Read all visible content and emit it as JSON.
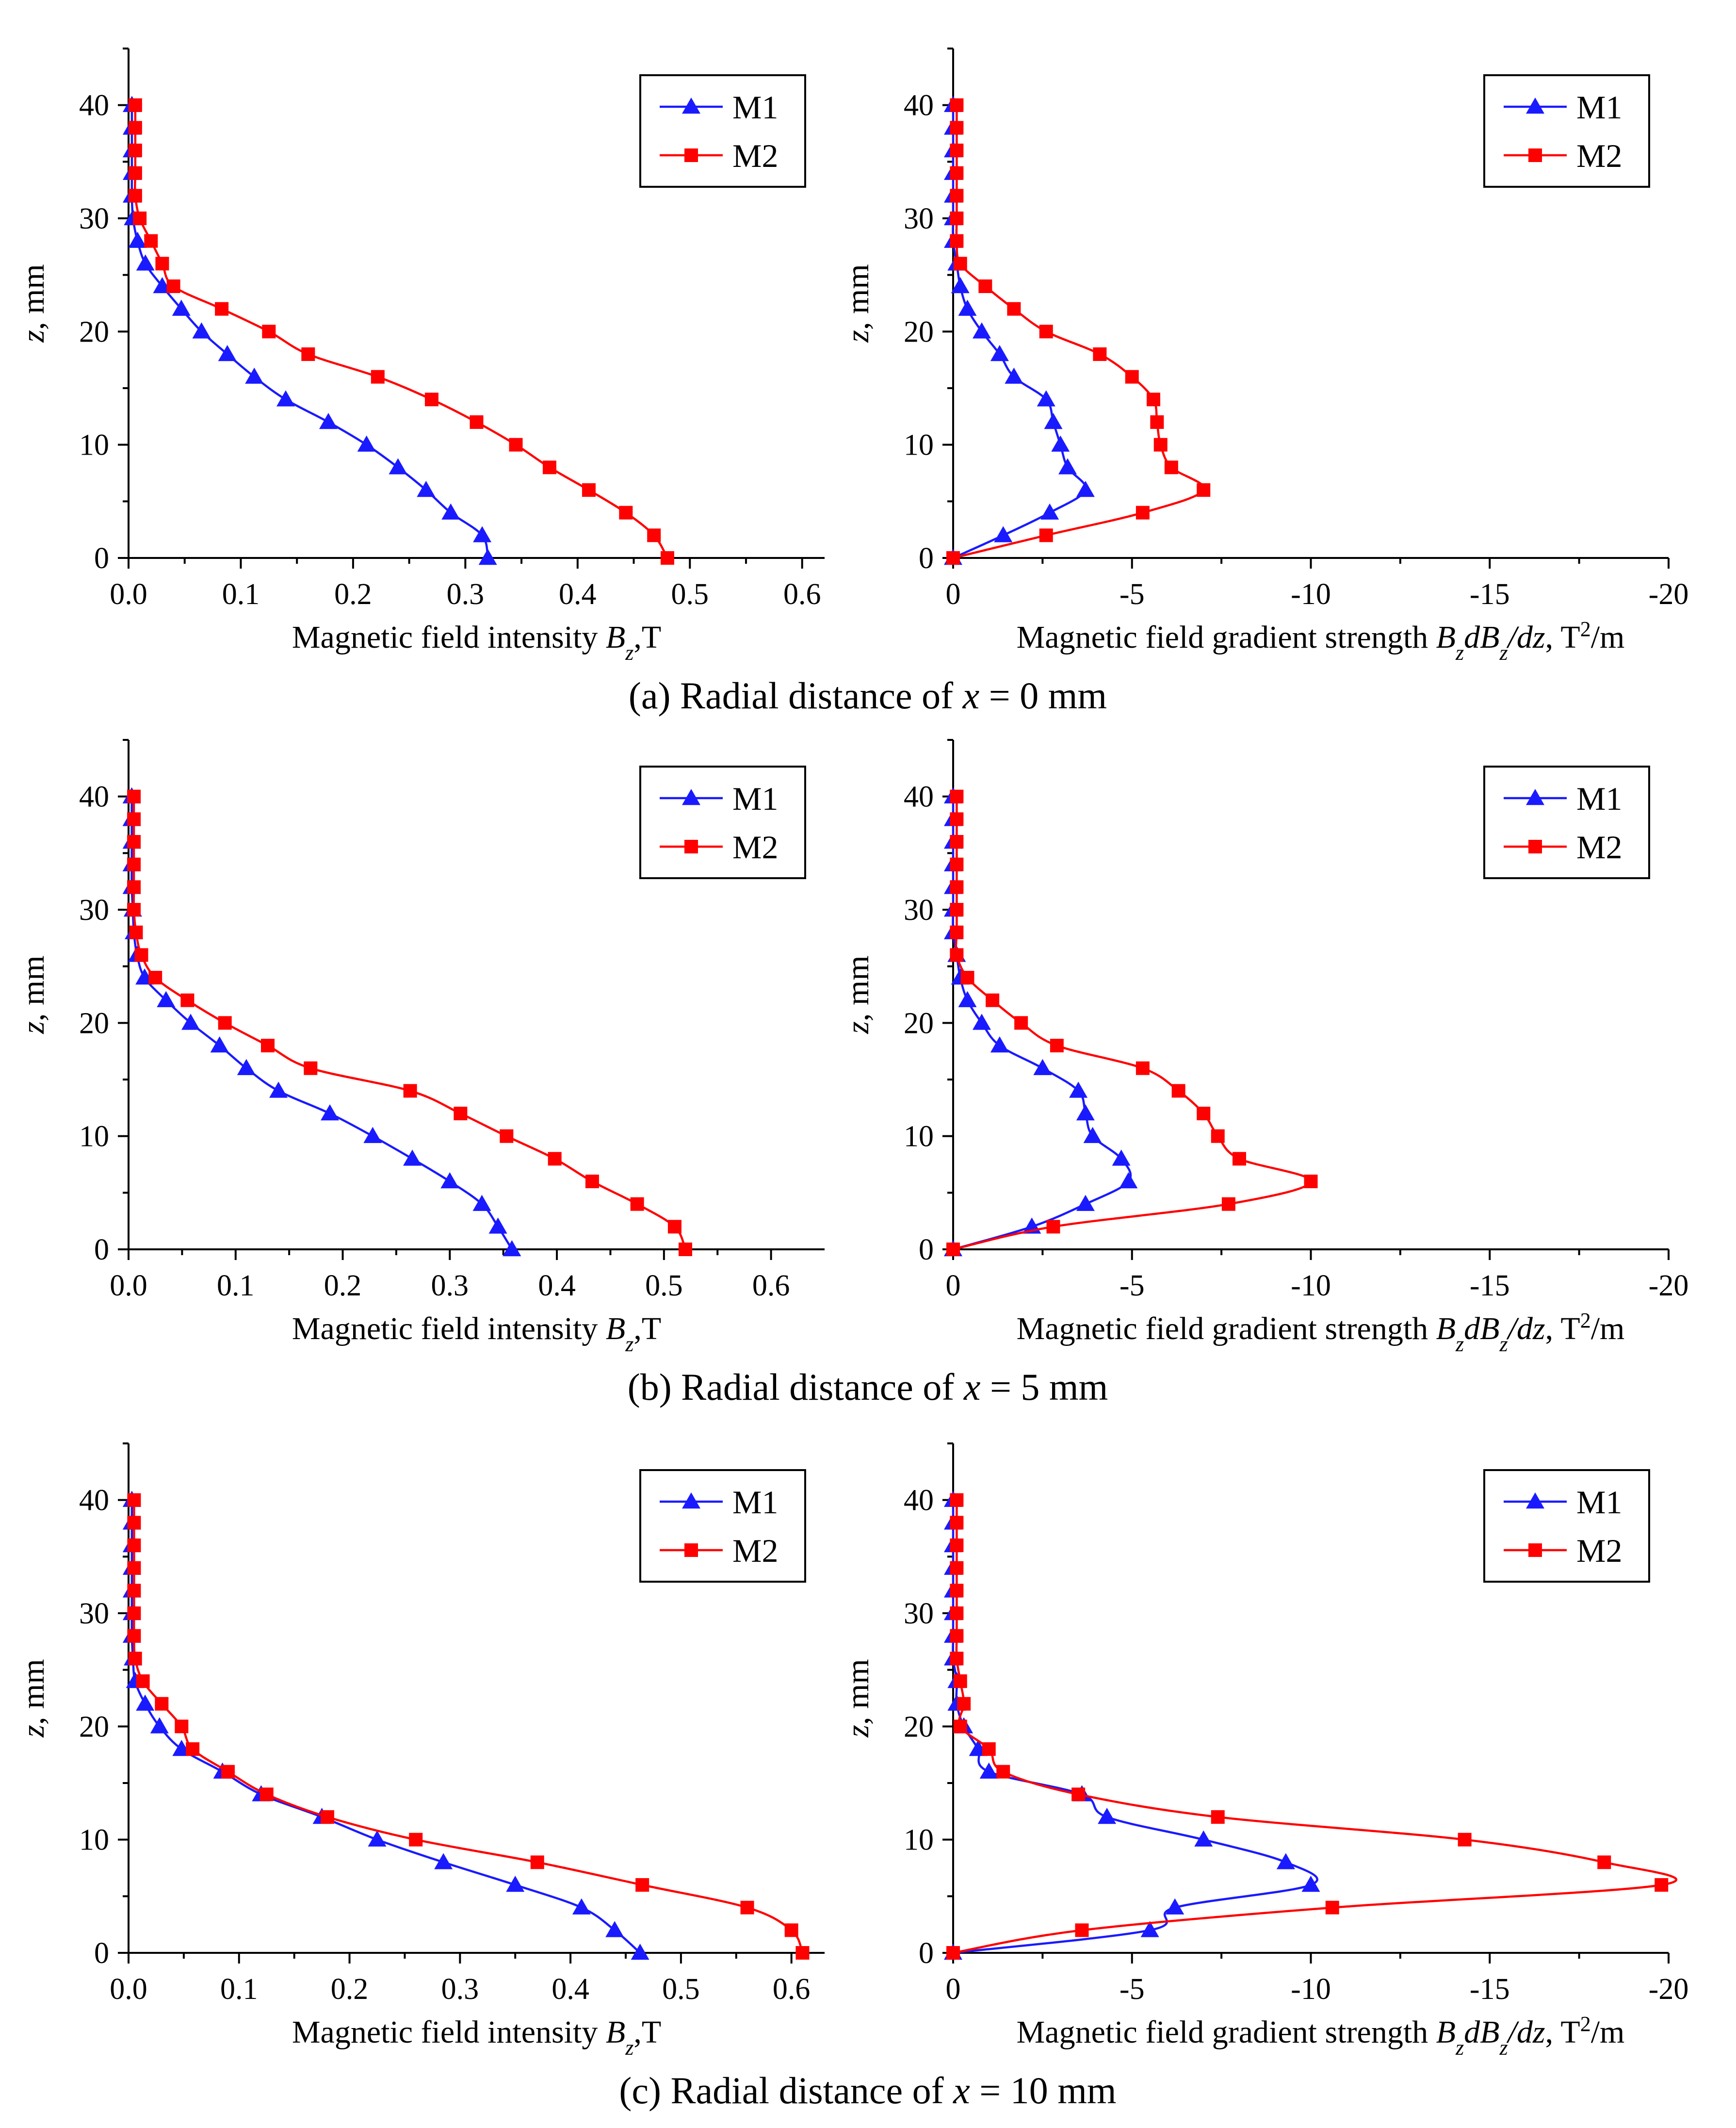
{
  "colors": {
    "M1": "#1a1aff",
    "M2": "#ff0000",
    "axis": "#000000"
  },
  "captions": [
    {
      "prefix": "(a) Radial distance of ",
      "var": "x",
      "suffix": " = 0 mm"
    },
    {
      "prefix": "(b) Radial distance of ",
      "var": "x",
      "suffix": " = 5 mm"
    },
    {
      "prefix": "(c) Radial distance of ",
      "var": "x",
      "suffix": " = 10 mm"
    }
  ],
  "axes_text": {
    "ylabel": "z, mm",
    "xlabel_left": {
      "text": "Magnetic field intensity ",
      "sym": "Bz",
      "unit": ",T"
    },
    "xlabel_right": {
      "text": "Magnetic field gradient strength ",
      "sym": "BzdBz/dz",
      "unit": ", T²/m"
    }
  },
  "chart_data": [
    {
      "type": "scatter",
      "panel": "a-left",
      "xlim": [
        0,
        0.62
      ],
      "ylim": [
        0,
        45
      ],
      "xticks": [
        "0.0",
        "0.1",
        "0.2",
        "0.3",
        "0.4",
        "0.5",
        "0.6"
      ],
      "xtick_values": [
        0,
        0.1,
        0.2,
        0.3,
        0.4,
        0.5,
        0.6
      ],
      "yticks": [
        "0",
        "10",
        "20",
        "30",
        "40"
      ],
      "ytick_values": [
        0,
        10,
        20,
        30,
        40
      ],
      "legend": [
        "M1",
        "M2"
      ],
      "series": [
        {
          "name": "M1",
          "marker": "triangle",
          "x": [
            0.32,
            0.315,
            0.287,
            0.265,
            0.24,
            0.212,
            0.178,
            0.14,
            0.112,
            0.088,
            0.065,
            0.047,
            0.03,
            0.015,
            0.008,
            0.004,
            0.003,
            0.003,
            0.003,
            0.003,
            0.003
          ],
          "y": [
            0,
            2,
            4,
            6,
            8,
            10,
            12,
            14,
            16,
            18,
            20,
            22,
            24,
            26,
            28,
            30,
            32,
            34,
            36,
            38,
            40
          ]
        },
        {
          "name": "M2",
          "marker": "square",
          "x": [
            0.48,
            0.468,
            0.443,
            0.41,
            0.375,
            0.345,
            0.31,
            0.27,
            0.222,
            0.16,
            0.125,
            0.083,
            0.04,
            0.03,
            0.02,
            0.01,
            0.006,
            0.006,
            0.006,
            0.006,
            0.006
          ],
          "y": [
            0,
            2,
            4,
            6,
            8,
            10,
            12,
            14,
            16,
            18,
            20,
            22,
            24,
            26,
            28,
            30,
            32,
            34,
            36,
            38,
            40
          ]
        }
      ]
    },
    {
      "type": "scatter",
      "panel": "a-right",
      "xlim": [
        0,
        -20
      ],
      "ylim": [
        0,
        45
      ],
      "xticks": [
        "0",
        "-5",
        "-10",
        "-15",
        "-20"
      ],
      "xtick_values": [
        0,
        -5,
        -10,
        -15,
        -20
      ],
      "yticks": [
        "0",
        "10",
        "20",
        "30",
        "40"
      ],
      "ytick_values": [
        0,
        10,
        20,
        30,
        40
      ],
      "legend": [
        "M1",
        "M2"
      ],
      "series": [
        {
          "name": "M1",
          "marker": "triangle",
          "x": [
            0,
            -1.4,
            -2.7,
            -3.7,
            -3.2,
            -3.0,
            -2.8,
            -2.6,
            -1.7,
            -1.3,
            -0.8,
            -0.4,
            -0.2,
            -0.1,
            0,
            0,
            0,
            0,
            0,
            0,
            0
          ],
          "y": [
            0,
            2,
            4,
            6,
            8,
            10,
            12,
            14,
            16,
            18,
            20,
            22,
            24,
            26,
            28,
            30,
            32,
            34,
            36,
            38,
            40
          ]
        },
        {
          "name": "M2",
          "marker": "square",
          "x": [
            0,
            -2.6,
            -5.3,
            -7.0,
            -6.1,
            -5.8,
            -5.7,
            -5.6,
            -5.0,
            -4.1,
            -2.6,
            -1.7,
            -0.9,
            -0.2,
            -0.1,
            -0.1,
            -0.1,
            -0.1,
            -0.1,
            -0.1,
            -0.1
          ],
          "y": [
            0,
            2,
            4,
            6,
            8,
            10,
            12,
            14,
            16,
            18,
            20,
            22,
            24,
            26,
            28,
            30,
            32,
            34,
            36,
            38,
            40
          ]
        }
      ]
    },
    {
      "type": "scatter",
      "panel": "b-left",
      "xlim": [
        0,
        0.65
      ],
      "ylim": [
        0,
        45
      ],
      "xticks": [
        "0.0",
        "0.1",
        "0.2",
        "0.3",
        "0.4",
        "0.5",
        "0.6"
      ],
      "xtick_values": [
        0,
        0.1,
        0.2,
        0.3,
        0.4,
        0.5,
        0.6
      ],
      "yticks": [
        "0",
        "10",
        "20",
        "30",
        "40"
      ],
      "ytick_values": [
        0,
        10,
        20,
        30,
        40
      ],
      "legend": [
        "M1",
        "M2"
      ],
      "series": [
        {
          "name": "M1",
          "marker": "triangle",
          "x": [
            0.358,
            0.345,
            0.33,
            0.3,
            0.265,
            0.228,
            0.188,
            0.14,
            0.11,
            0.085,
            0.058,
            0.035,
            0.015,
            0.008,
            0.005,
            0.004,
            0.003,
            0.003,
            0.003,
            0.003,
            0.003
          ],
          "y": [
            0,
            2,
            4,
            6,
            8,
            10,
            12,
            14,
            16,
            18,
            20,
            22,
            24,
            26,
            28,
            30,
            32,
            34,
            36,
            38,
            40
          ]
        },
        {
          "name": "M2",
          "marker": "square",
          "x": [
            0.52,
            0.51,
            0.475,
            0.433,
            0.398,
            0.353,
            0.31,
            0.263,
            0.17,
            0.13,
            0.09,
            0.055,
            0.025,
            0.012,
            0.007,
            0.005,
            0.005,
            0.005,
            0.005,
            0.005,
            0.005
          ],
          "y": [
            0,
            2,
            4,
            6,
            8,
            10,
            12,
            14,
            16,
            18,
            20,
            22,
            24,
            26,
            28,
            30,
            32,
            34,
            36,
            38,
            40
          ]
        }
      ]
    },
    {
      "type": "scatter",
      "panel": "b-right",
      "xlim": [
        0,
        -20
      ],
      "ylim": [
        0,
        45
      ],
      "xticks": [
        "0",
        "-5",
        "-10",
        "-15",
        "-20"
      ],
      "xtick_values": [
        0,
        -5,
        -10,
        -15,
        -20
      ],
      "yticks": [
        "0",
        "10",
        "20",
        "30",
        "40"
      ],
      "ytick_values": [
        0,
        10,
        20,
        30,
        40
      ],
      "legend": [
        "M1",
        "M2"
      ],
      "series": [
        {
          "name": "M1",
          "marker": "triangle",
          "x": [
            0,
            -2.2,
            -3.7,
            -4.9,
            -4.7,
            -3.9,
            -3.7,
            -3.5,
            -2.5,
            -1.3,
            -0.8,
            -0.4,
            -0.2,
            -0.1,
            0,
            0,
            0,
            0,
            0,
            0,
            0
          ],
          "y": [
            0,
            2,
            4,
            6,
            8,
            10,
            12,
            14,
            16,
            18,
            20,
            22,
            24,
            26,
            28,
            30,
            32,
            34,
            36,
            38,
            40
          ]
        },
        {
          "name": "M2",
          "marker": "square",
          "x": [
            0,
            -2.8,
            -7.7,
            -10.0,
            -8.0,
            -7.4,
            -7.0,
            -6.3,
            -5.3,
            -2.9,
            -1.9,
            -1.1,
            -0.4,
            -0.1,
            -0.1,
            -0.1,
            -0.1,
            -0.1,
            -0.1,
            -0.1,
            -0.1
          ],
          "y": [
            0,
            2,
            4,
            6,
            8,
            10,
            12,
            14,
            16,
            18,
            20,
            22,
            24,
            26,
            28,
            30,
            32,
            34,
            36,
            38,
            40
          ]
        }
      ]
    },
    {
      "type": "scatter",
      "panel": "c-left",
      "xlim": [
        0,
        0.63
      ],
      "ylim": [
        0,
        45
      ],
      "xticks": [
        "0.0",
        "0.1",
        "0.2",
        "0.3",
        "0.4",
        "0.5",
        "0.6"
      ],
      "xtick_values": [
        0,
        0.1,
        0.2,
        0.3,
        0.4,
        0.5,
        0.6
      ],
      "yticks": [
        "0",
        "10",
        "20",
        "30",
        "40"
      ],
      "ytick_values": [
        0,
        10,
        20,
        30,
        40
      ],
      "legend": [
        "M1",
        "M2"
      ],
      "series": [
        {
          "name": "M1",
          "marker": "triangle",
          "x": [
            0.463,
            0.44,
            0.41,
            0.35,
            0.285,
            0.225,
            0.175,
            0.12,
            0.085,
            0.048,
            0.028,
            0.015,
            0.006,
            0.004,
            0.003,
            0.003,
            0.003,
            0.003,
            0.003,
            0.003,
            0.003
          ],
          "y": [
            0,
            2,
            4,
            6,
            8,
            10,
            12,
            14,
            16,
            18,
            20,
            22,
            24,
            26,
            28,
            30,
            32,
            34,
            36,
            38,
            40
          ]
        },
        {
          "name": "M2",
          "marker": "square",
          "x": [
            0.61,
            0.6,
            0.56,
            0.465,
            0.37,
            0.26,
            0.18,
            0.125,
            0.09,
            0.058,
            0.048,
            0.03,
            0.013,
            0.006,
            0.005,
            0.005,
            0.005,
            0.005,
            0.005,
            0.005,
            0.005
          ],
          "y": [
            0,
            2,
            4,
            6,
            8,
            10,
            12,
            14,
            16,
            18,
            20,
            22,
            24,
            26,
            28,
            30,
            32,
            34,
            36,
            38,
            40
          ]
        }
      ]
    },
    {
      "type": "scatter",
      "panel": "c-right",
      "xlim": [
        0,
        -20
      ],
      "ylim": [
        0,
        45
      ],
      "xticks": [
        "0",
        "-5",
        "-10",
        "-15",
        "-20"
      ],
      "xtick_values": [
        0,
        -5,
        -10,
        -15,
        -20
      ],
      "yticks": [
        "0",
        "10",
        "20",
        "30",
        "40"
      ],
      "ytick_values": [
        0,
        10,
        20,
        30,
        40
      ],
      "legend": [
        "M1",
        "M2"
      ],
      "series": [
        {
          "name": "M1",
          "marker": "triangle",
          "x": [
            0,
            -5.5,
            -6.2,
            -10.0,
            -9.3,
            -7.0,
            -4.3,
            -3.6,
            -1.0,
            -0.7,
            -0.3,
            -0.1,
            -0.1,
            0,
            0,
            0,
            0,
            0,
            0,
            0,
            0
          ],
          "y": [
            0,
            2,
            4,
            6,
            8,
            10,
            12,
            14,
            16,
            18,
            20,
            22,
            24,
            26,
            28,
            30,
            32,
            34,
            36,
            38,
            40
          ]
        },
        {
          "name": "M2",
          "marker": "square",
          "x": [
            0,
            -3.6,
            -10.6,
            -19.8,
            -18.2,
            -14.3,
            -7.4,
            -3.5,
            -1.4,
            -1.0,
            -0.2,
            -0.3,
            -0.2,
            -0.1,
            -0.1,
            -0.1,
            -0.1,
            -0.1,
            -0.1,
            -0.1,
            -0.1
          ],
          "y": [
            0,
            2,
            4,
            6,
            8,
            10,
            12,
            14,
            16,
            18,
            20,
            22,
            24,
            26,
            28,
            30,
            32,
            34,
            36,
            38,
            40
          ]
        }
      ]
    }
  ]
}
